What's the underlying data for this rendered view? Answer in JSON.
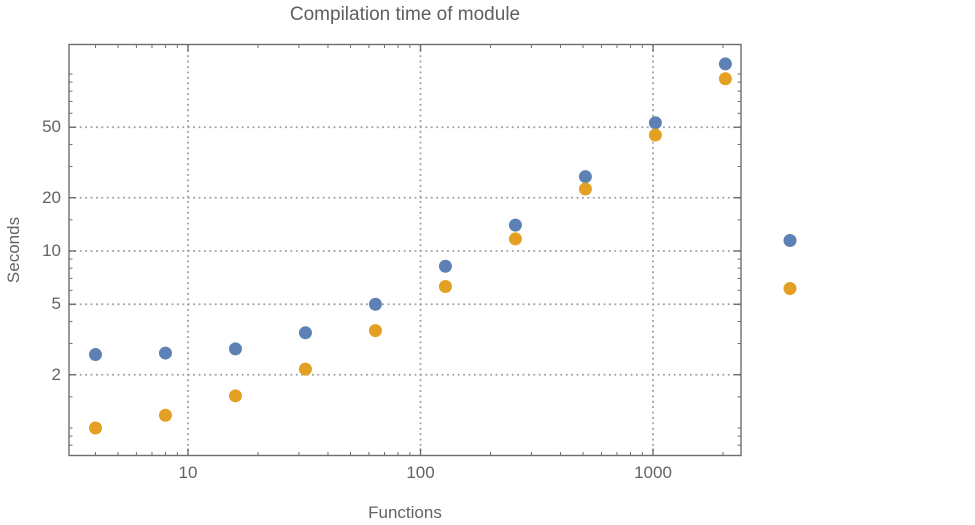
{
  "chart_data": {
    "type": "scatter",
    "title": "Compilation time of module",
    "xlabel": "Functions",
    "ylabel": "Seconds",
    "x_scale": "log",
    "y_scale": "log",
    "x_range": [
      3.05,
      2400
    ],
    "y_range": [
      0.7,
      146
    ],
    "grid": "dotted, only at labeled ticks",
    "legend_position": "right-of-frame, markers only, no text",
    "x": [
      4,
      8,
      16,
      32,
      64,
      128,
      256,
      512,
      1024,
      2048
    ],
    "series": [
      {
        "name": "series-blue",
        "color": "#5e81b5",
        "values": [
          2.6,
          2.65,
          2.8,
          3.45,
          5.0,
          8.2,
          14.0,
          26.3,
          53,
          114
        ]
      },
      {
        "name": "series-orange",
        "color": "#e3a023",
        "values": [
          1.0,
          1.18,
          1.52,
          2.15,
          3.55,
          6.3,
          11.7,
          22.4,
          45.2,
          94
        ]
      }
    ],
    "x_axis": {
      "major_ticks": [
        10,
        100,
        1000
      ],
      "major_labels": [
        "10",
        "100",
        "1000"
      ],
      "minor_ticks": [
        4,
        5,
        6,
        7,
        8,
        9,
        20,
        30,
        40,
        50,
        60,
        70,
        80,
        90,
        200,
        300,
        400,
        500,
        600,
        700,
        800,
        900,
        2000
      ]
    },
    "y_axis": {
      "major_ticks": [
        2,
        5,
        10,
        20,
        50
      ],
      "major_labels": [
        "2",
        "5",
        "10",
        "20",
        "50"
      ],
      "minor_ticks": [
        0.8,
        0.9,
        1,
        1.5,
        3,
        4,
        6,
        7,
        8,
        9,
        15,
        30,
        40,
        60,
        70,
        80,
        90,
        100
      ]
    },
    "colors": {
      "frame": "#6e6e6e",
      "gridline": "#9c9c9c",
      "title_text": "#5f5f5f",
      "tick_text": "#636363",
      "blue_marker": "#5e81b5",
      "orange_marker": "#e3a023"
    }
  }
}
